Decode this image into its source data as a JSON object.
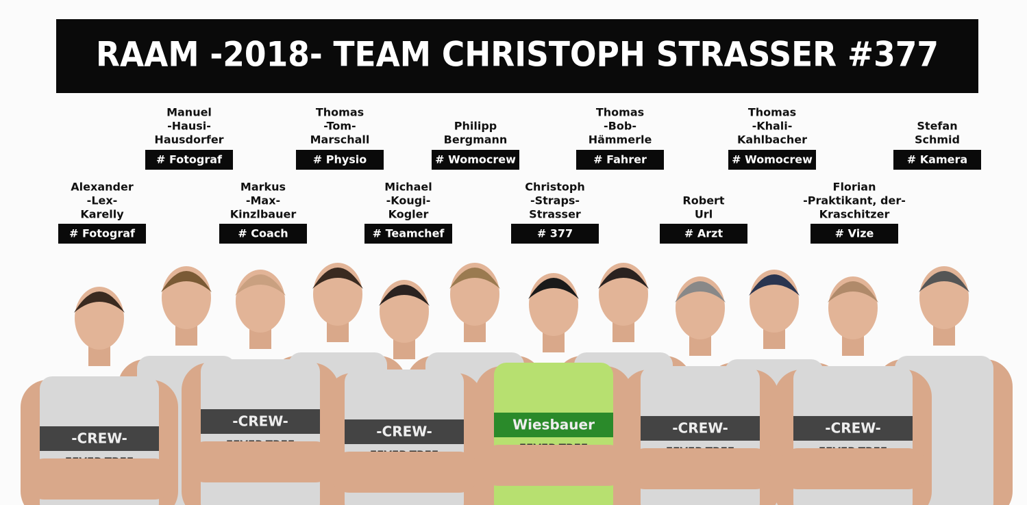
{
  "header": {
    "title": "RAAM -2018- TEAM CHRISTOPH STRASSER #377"
  },
  "members": [
    {
      "name": [
        "Alexander",
        "-Lex-",
        "Karelly"
      ],
      "role": "# Fotograf"
    },
    {
      "name": [
        "Manuel",
        "-Hausi-",
        "Hausdorfer"
      ],
      "role": "# Fotograf"
    },
    {
      "name": [
        "Markus",
        "-Max-",
        "Kinzlbauer"
      ],
      "role": "# Coach"
    },
    {
      "name": [
        "Thomas",
        "-Tom-",
        "Marschall"
      ],
      "role": "# Physio"
    },
    {
      "name": [
        "Michael",
        "-Kougi-",
        "Kogler"
      ],
      "role": "# Teamchef"
    },
    {
      "name": [
        "Philipp",
        "Bergmann"
      ],
      "role": "# Womocrew"
    },
    {
      "name": [
        "Christoph",
        "-Straps-",
        "Strasser"
      ],
      "role": "# 377"
    },
    {
      "name": [
        "Thomas",
        "-Bob-",
        "Hämmerle"
      ],
      "role": "# Fahrer"
    },
    {
      "name": [
        "Robert",
        "Url"
      ],
      "role": "# Arzt"
    },
    {
      "name": [
        "Thomas",
        "-Khali-",
        "Kahlbacher"
      ],
      "role": "# Womocrew"
    },
    {
      "name": [
        "Florian",
        "-Praktikant, der-",
        "Kraschitzer"
      ],
      "role": "# Vize"
    },
    {
      "name": [
        "Stefan",
        "Schmid"
      ],
      "role": "# Kamera"
    }
  ],
  "photo": {
    "crew_shirt": "-CREW-",
    "sponsor": "FEVER-TREE",
    "rider_shirt": "Wiesbauer"
  }
}
